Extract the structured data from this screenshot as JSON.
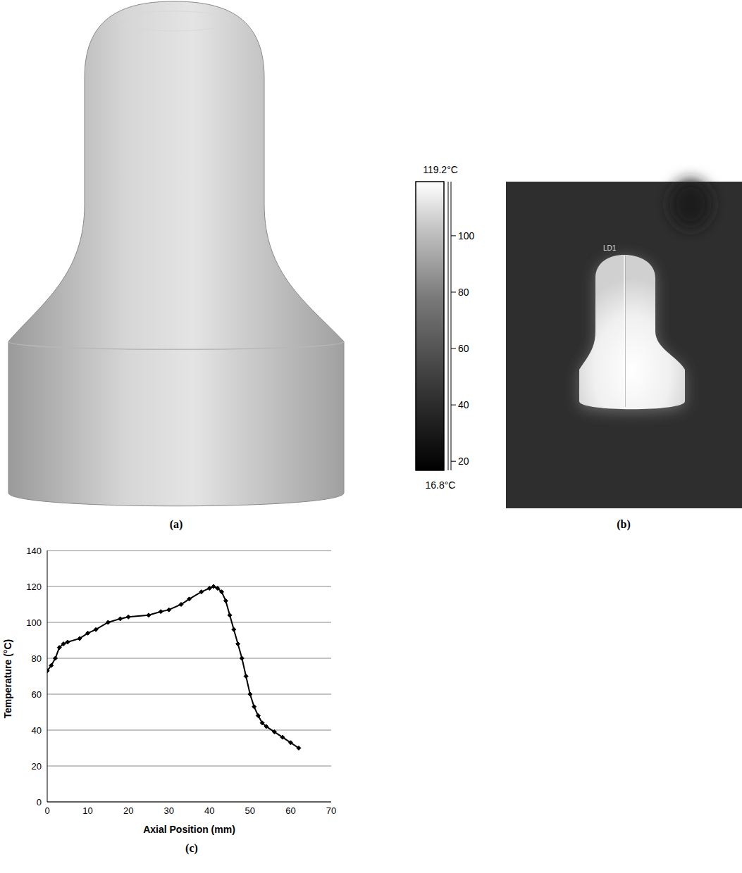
{
  "panels": {
    "a": {
      "label": "(a)"
    },
    "b": {
      "label": "(b)",
      "line_label": "LD1",
      "colorbar": {
        "max_label": "119.2°C",
        "min_label": "16.8°C",
        "range": [
          16.8,
          119.2
        ],
        "ticks": [
          20,
          40,
          60,
          80,
          100
        ]
      }
    },
    "c": {
      "label": "(c)"
    }
  },
  "chart_data": {
    "type": "line",
    "x_label": "Axial Position (mm)",
    "y_label": "Temperature (°C)",
    "x": [
      0,
      1,
      2,
      3,
      4,
      5,
      8,
      10,
      12,
      15,
      18,
      20,
      25,
      28,
      30,
      33,
      35,
      38,
      40,
      41,
      42,
      43,
      44,
      45,
      46,
      47,
      48,
      49,
      50,
      51,
      52,
      53,
      54,
      56,
      58,
      60,
      62
    ],
    "series": [
      {
        "name": "Temperature",
        "color": "#000000",
        "marker": "diamond",
        "values": [
          73,
          76,
          80,
          86,
          88,
          89,
          91,
          94,
          96,
          100,
          102,
          103,
          104,
          106,
          107,
          110,
          113,
          117,
          119,
          120,
          119,
          117,
          112,
          104,
          96,
          88,
          80,
          70,
          60,
          53,
          48,
          44,
          42,
          39,
          36,
          33,
          30
        ]
      }
    ],
    "xlim": [
      0,
      70
    ],
    "xticks": [
      0,
      10,
      20,
      30,
      40,
      50,
      60,
      70
    ],
    "ylim": [
      0,
      140
    ],
    "yticks": [
      0,
      20,
      40,
      60,
      80,
      100,
      120,
      140
    ],
    "grid": true
  }
}
